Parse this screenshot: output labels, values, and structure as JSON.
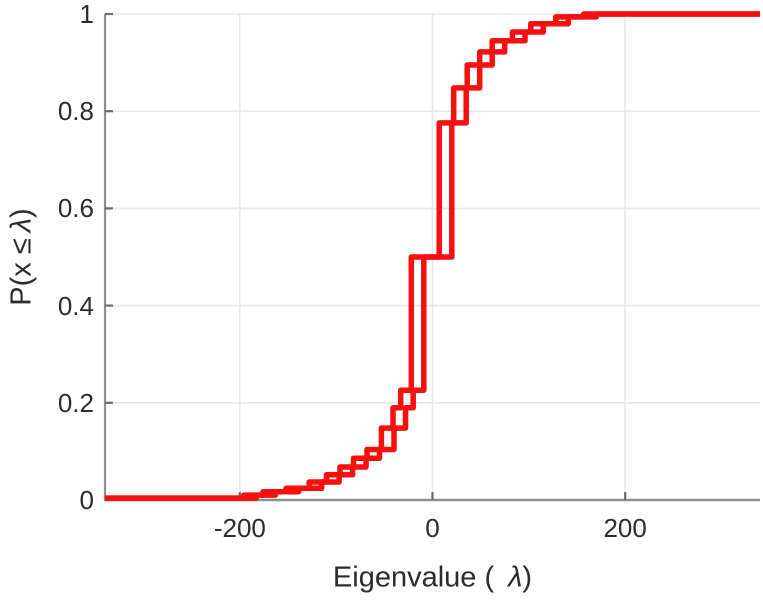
{
  "figure": {
    "background": "#ffffff"
  },
  "chart_data": {
    "type": "line",
    "subtype": "empirical-cdf-steps",
    "title": "",
    "xlabel_prefix": "Eigenvalue (",
    "xlabel_symbol": "λ",
    "xlabel_suffix": ")",
    "ylabel_prefix": "P(x ≤",
    "ylabel_symbol": "λ",
    "ylabel_suffix": ")",
    "xlim": [
      -340,
      340
    ],
    "ylim": [
      0,
      1
    ],
    "grid": "on",
    "legend": "none",
    "x_ticks": [
      {
        "value": -200,
        "label": "-200"
      },
      {
        "value": 0,
        "label": "0"
      },
      {
        "value": 200,
        "label": "200"
      }
    ],
    "y_ticks": [
      {
        "value": 0,
        "label": "0"
      },
      {
        "value": 0.2,
        "label": "0.2"
      },
      {
        "value": 0.4,
        "label": "0.4"
      },
      {
        "value": 0.6,
        "label": "0.6"
      },
      {
        "value": 0.8,
        "label": "0.8"
      },
      {
        "value": 1,
        "label": "1"
      }
    ],
    "line_color": "#fa0f0f",
    "line_width": 5.5,
    "grid_color": "#e8e8e8",
    "axis_color": "#8f8f8f",
    "tick_mark_color": "#6d6d6d",
    "label_color": "#2c2c2c",
    "series": [
      {
        "name": "eigenvalue-ecdf-1",
        "start_probability": 0.004,
        "steps": [
          [
            -196,
            0.01
          ],
          [
            -176,
            0.017
          ],
          [
            -152,
            0.024
          ],
          [
            -128,
            0.037
          ],
          [
            -110,
            0.052
          ],
          [
            -96,
            0.068
          ],
          [
            -82,
            0.086
          ],
          [
            -68,
            0.104
          ],
          [
            -53,
            0.148
          ],
          [
            -41,
            0.19
          ],
          [
            -33,
            0.226
          ],
          [
            -22,
            0.5
          ],
          [
            7,
            0.776
          ],
          [
            22,
            0.848
          ],
          [
            36,
            0.895
          ],
          [
            49,
            0.922
          ],
          [
            62,
            0.945
          ],
          [
            83,
            0.963
          ],
          [
            102,
            0.98
          ],
          [
            128,
            0.994
          ],
          [
            157,
            1.0
          ]
        ]
      },
      {
        "name": "eigenvalue-ecdf-2",
        "start_probability": 0.004,
        "steps": [
          [
            -183,
            0.01
          ],
          [
            -163,
            0.017
          ],
          [
            -139,
            0.024
          ],
          [
            -115,
            0.037
          ],
          [
            -97,
            0.052
          ],
          [
            -83,
            0.068
          ],
          [
            -69,
            0.086
          ],
          [
            -55,
            0.104
          ],
          [
            -40,
            0.148
          ],
          [
            -28,
            0.19
          ],
          [
            -20,
            0.226
          ],
          [
            -9,
            0.5
          ],
          [
            20,
            0.776
          ],
          [
            35,
            0.848
          ],
          [
            49,
            0.895
          ],
          [
            62,
            0.922
          ],
          [
            75,
            0.945
          ],
          [
            96,
            0.963
          ],
          [
            115,
            0.98
          ],
          [
            141,
            0.994
          ],
          [
            170,
            1.0
          ]
        ]
      }
    ]
  }
}
